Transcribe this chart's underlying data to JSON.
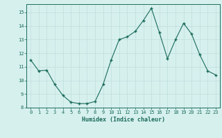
{
  "x": [
    0,
    1,
    2,
    3,
    4,
    5,
    6,
    7,
    8,
    9,
    10,
    11,
    12,
    13,
    14,
    15,
    16,
    17,
    18,
    19,
    20,
    21,
    22,
    23
  ],
  "y": [
    11.5,
    10.7,
    10.75,
    9.7,
    8.9,
    8.4,
    8.3,
    8.3,
    8.45,
    9.7,
    11.5,
    13.0,
    13.2,
    13.6,
    14.4,
    15.3,
    13.5,
    11.6,
    13.0,
    14.2,
    13.4,
    11.9,
    10.7,
    10.4
  ],
  "line_color": "#1a6b5a",
  "marker_color": "#1a6b5a",
  "bg_color": "#d6f0ee",
  "grid_color": "#c0deda",
  "xlabel": "Humidex (Indice chaleur)",
  "ylim": [
    8,
    15.6
  ],
  "xlim": [
    -0.5,
    23.5
  ],
  "yticks": [
    8,
    9,
    10,
    11,
    12,
    13,
    14,
    15
  ],
  "xticks": [
    0,
    1,
    2,
    3,
    4,
    5,
    6,
    7,
    8,
    9,
    10,
    11,
    12,
    13,
    14,
    15,
    16,
    17,
    18,
    19,
    20,
    21,
    22,
    23
  ]
}
